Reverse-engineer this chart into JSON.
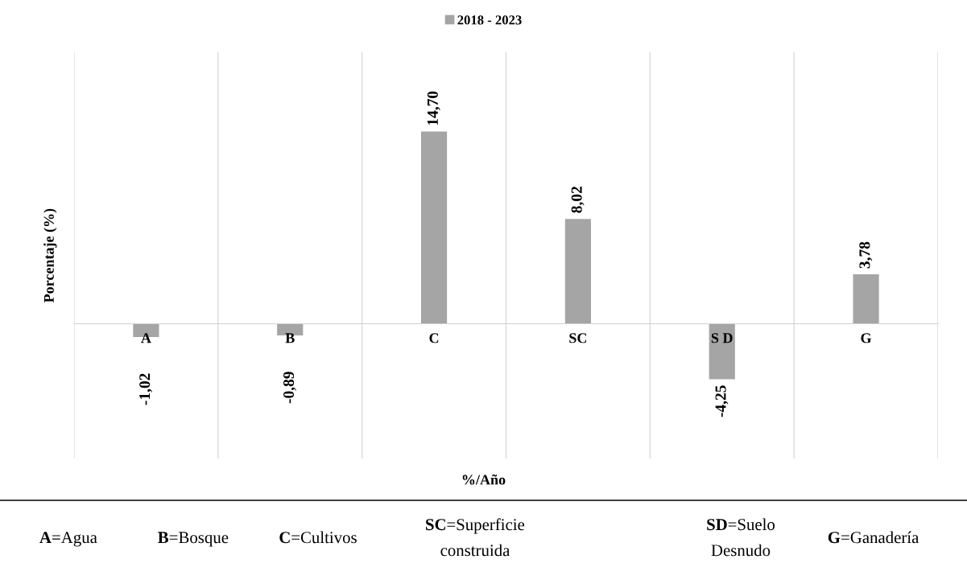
{
  "chart_data": {
    "type": "bar",
    "ylabel": "Porcentaje (%)",
    "categories": [
      "A",
      "B",
      "C",
      "SC",
      "S D",
      "G"
    ],
    "series": [
      {
        "name": "2018 - 2023",
        "color": "#a5a5a5",
        "values": [
          -1.02,
          -0.89,
          14.7,
          8.02,
          -4.25,
          3.78
        ],
        "value_labels": [
          "-1,02",
          "-0,89",
          "14,70",
          "8,02",
          "-4,25",
          "3,78"
        ]
      }
    ],
    "grid": "x",
    "legend": "top",
    "tick_labels": "x",
    "annotations": [
      "%/Año",
      "A=Agua",
      "B=Bosque",
      "C=Cultivos",
      "SC=Superficie\nconstruida",
      "SD=Suelo\nDesnudo",
      "G=Ganadería"
    ]
  }
}
